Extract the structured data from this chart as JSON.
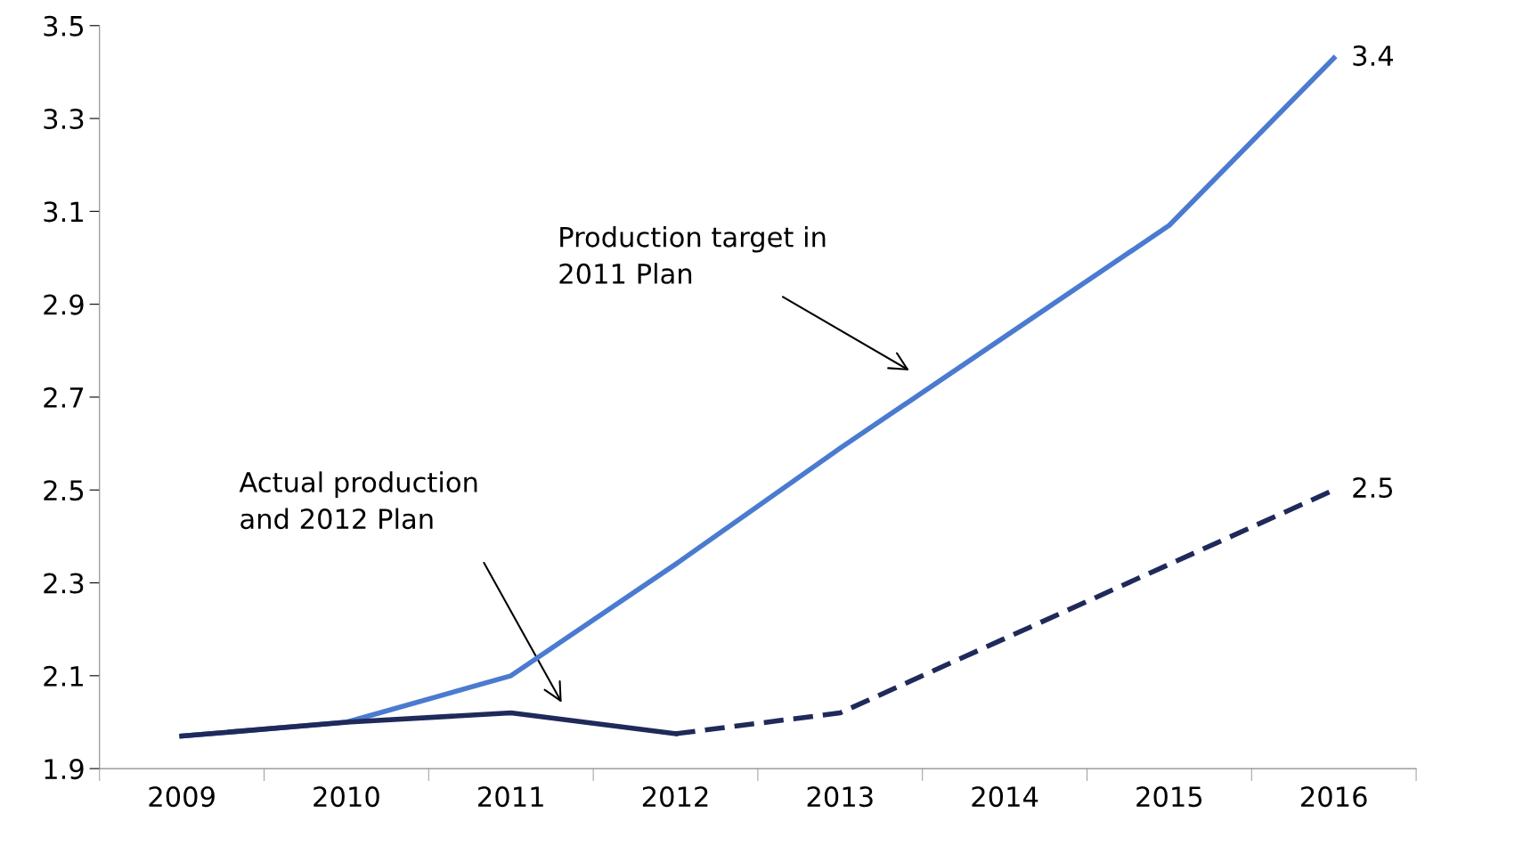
{
  "chart_data": {
    "type": "line",
    "categories": [
      "2009",
      "2010",
      "2011",
      "2012",
      "2013",
      "2014",
      "2015",
      "2016"
    ],
    "ylim": [
      1.9,
      3.5
    ],
    "yticks": [
      1.9,
      2.1,
      2.3,
      2.5,
      2.7,
      2.9,
      3.1,
      3.3,
      3.5
    ],
    "grid": false,
    "legend": false,
    "marker": "none",
    "series": [
      {
        "color": "#4a7bd0",
        "line_style": "solid",
        "values": [
          1.97,
          2.0,
          2.1,
          2.34,
          2.59,
          2.83,
          3.07,
          3.43
        ],
        "value_labels": [
          null,
          null,
          null,
          null,
          null,
          null,
          null,
          "3.4"
        ]
      },
      {
        "color": "#1f2a5a",
        "line_style": "solid",
        "values": [
          1.97,
          2.0,
          2.02,
          1.975,
          null,
          null,
          null,
          null
        ]
      },
      {
        "color": "#1f2a5a",
        "line_style": "dashed",
        "values": [
          null,
          null,
          null,
          1.975,
          2.02,
          2.18,
          2.34,
          2.5
        ],
        "value_labels": [
          null,
          null,
          null,
          null,
          null,
          null,
          null,
          "2.5"
        ]
      }
    ],
    "annotations": [
      "Production target in\n2011 Plan",
      "Actual production\nand 2012 Plan"
    ]
  }
}
